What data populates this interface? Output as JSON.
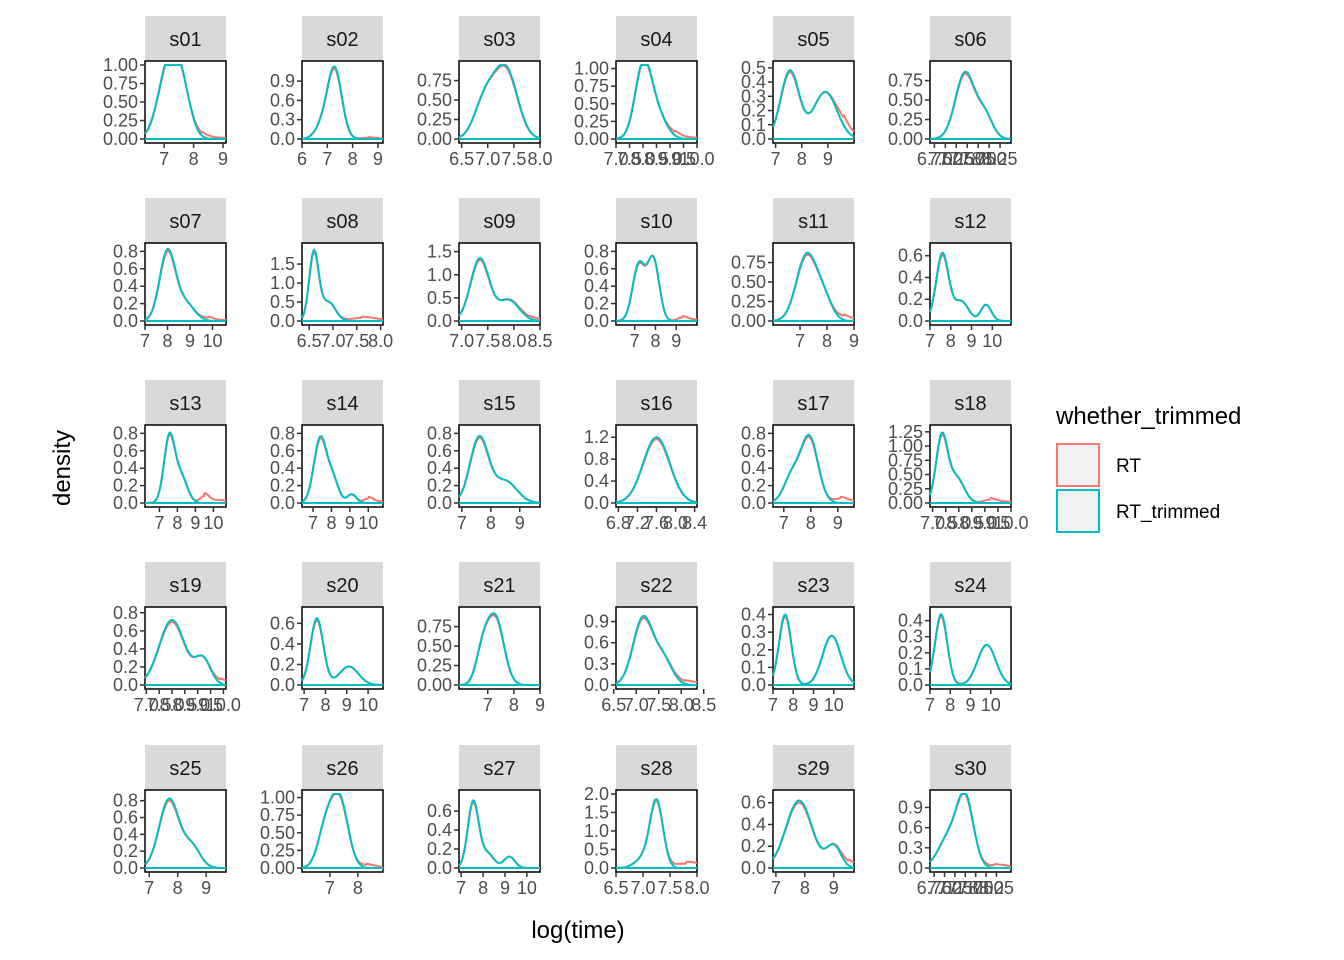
{
  "chart_data": {
    "type": "line",
    "subtype": "faceted density plot",
    "xlabel": "log(time)",
    "ylabel": "density",
    "legend": {
      "title": "whether_trimmed",
      "placement": "right",
      "entries": [
        {
          "name": "RT",
          "color": "#F8766D"
        },
        {
          "name": "RT_trimmed",
          "color": "#00BFC4"
        }
      ]
    },
    "panels": [
      {
        "id": "s01",
        "xlim": [
          6.35,
          9.1
        ],
        "ylim": [
          0,
          1.0
        ],
        "xticks": [
          "7",
          "8",
          "9"
        ],
        "yticks": [
          "0.00",
          "0.25",
          "0.50",
          "0.75",
          "1.00"
        ],
        "peaks": [
          {
            "x": 7.15,
            "h": 0.98,
            "w": 0.35
          },
          {
            "x": 7.6,
            "h": 0.55,
            "w": 0.3
          }
        ],
        "tail": {
          "x": 8.3,
          "h": 0.04
        }
      },
      {
        "id": "s02",
        "xlim": [
          6.0,
          9.2
        ],
        "ylim": [
          0,
          1.15
        ],
        "xticks": [
          "6",
          "7",
          "8",
          "9"
        ],
        "yticks": [
          "0.0",
          "0.3",
          "0.6",
          "0.9"
        ],
        "peaks": [
          {
            "x": 7.3,
            "h": 1.05,
            "w": 0.28
          },
          {
            "x": 6.85,
            "h": 0.22,
            "w": 0.3
          }
        ],
        "tail": {
          "x": 8.6,
          "h": 0.02
        }
      },
      {
        "id": "s03",
        "xlim": [
          6.45,
          8.0
        ],
        "ylim": [
          0,
          0.95
        ],
        "xticks": [
          "6.5",
          "7.0",
          "7.5",
          "8.0"
        ],
        "yticks": [
          "0.00",
          "0.25",
          "0.50",
          "0.75"
        ],
        "peaks": [
          {
            "x": 7.35,
            "h": 0.88,
            "w": 0.22
          },
          {
            "x": 6.95,
            "h": 0.5,
            "w": 0.2
          }
        ],
        "tail": null
      },
      {
        "id": "s04",
        "xlim": [
          7.0,
          10.0
        ],
        "ylim": [
          0,
          1.05
        ],
        "xticks": [
          "7.0",
          "7.5",
          "8.0",
          "8.5",
          "9.0",
          "9.5",
          "10.0"
        ],
        "yticks": [
          "0.00",
          "0.25",
          "0.50",
          "0.75",
          "1.00"
        ],
        "peaks": [
          {
            "x": 8.0,
            "h": 1.0,
            "w": 0.3
          },
          {
            "x": 8.5,
            "h": 0.35,
            "w": 0.35
          }
        ],
        "tail": {
          "x": 9.2,
          "h": 0.05
        }
      },
      {
        "id": "s05",
        "xlim": [
          6.9,
          10.0
        ],
        "ylim": [
          0,
          0.52
        ],
        "xticks": [
          "7",
          "8",
          "9"
        ],
        "yticks": [
          "0.0",
          "0.1",
          "0.2",
          "0.3",
          "0.4",
          "0.5"
        ],
        "peaks": [
          {
            "x": 7.55,
            "h": 0.48,
            "w": 0.35
          },
          {
            "x": 8.9,
            "h": 0.33,
            "w": 0.45
          }
        ],
        "tail": {
          "x": 9.6,
          "h": 0.05
        }
      },
      {
        "id": "s06",
        "xlim": [
          6.65,
          8.5
        ],
        "ylim": [
          0,
          0.95
        ],
        "xticks": [
          "6.75",
          "7.00",
          "7.25",
          "7.50",
          "7.75",
          "8.00",
          "8.25"
        ],
        "yticks": [
          "0.00",
          "0.25",
          "0.50",
          "0.75"
        ],
        "peaks": [
          {
            "x": 7.45,
            "h": 0.85,
            "w": 0.22
          },
          {
            "x": 7.9,
            "h": 0.3,
            "w": 0.18
          }
        ],
        "tail": null
      },
      {
        "id": "s07",
        "xlim": [
          7.0,
          10.6
        ],
        "ylim": [
          0,
          0.85
        ],
        "xticks": [
          "7",
          "8",
          "9",
          "10"
        ],
        "yticks": [
          "0.0",
          "0.2",
          "0.4",
          "0.6",
          "0.8"
        ],
        "peaks": [
          {
            "x": 8.0,
            "h": 0.8,
            "w": 0.35
          },
          {
            "x": 8.8,
            "h": 0.2,
            "w": 0.4
          }
        ],
        "tail": {
          "x": 9.8,
          "h": 0.03
        }
      },
      {
        "id": "s08",
        "xlim": [
          6.35,
          8.05
        ],
        "ylim": [
          0,
          1.95
        ],
        "xticks": [
          "6.5",
          "7.0",
          "7.5",
          "8.0"
        ],
        "yticks": [
          "0.0",
          "0.5",
          "1.0",
          "1.5"
        ],
        "peaks": [
          {
            "x": 6.6,
            "h": 1.8,
            "w": 0.1
          },
          {
            "x": 6.9,
            "h": 0.5,
            "w": 0.15
          }
        ],
        "tail": {
          "x": 7.6,
          "h": 0.08
        }
      },
      {
        "id": "s09",
        "xlim": [
          6.95,
          8.5
        ],
        "ylim": [
          0,
          1.6
        ],
        "xticks": [
          "7.0",
          "7.5",
          "8.0",
          "8.5"
        ],
        "yticks": [
          "0.0",
          "0.5",
          "1.0",
          "1.5"
        ],
        "peaks": [
          {
            "x": 7.35,
            "h": 1.35,
            "w": 0.18
          },
          {
            "x": 7.9,
            "h": 0.45,
            "w": 0.2
          }
        ],
        "tail": {
          "x": 8.3,
          "h": 0.04
        }
      },
      {
        "id": "s10",
        "xlim": [
          6.1,
          10.0
        ],
        "ylim": [
          0,
          0.85
        ],
        "xticks": [
          "7",
          "8",
          "9"
        ],
        "yticks": [
          "0.0",
          "0.2",
          "0.4",
          "0.6",
          "0.8"
        ],
        "peaks": [
          {
            "x": 7.2,
            "h": 0.65,
            "w": 0.3
          },
          {
            "x": 7.9,
            "h": 0.7,
            "w": 0.28
          }
        ],
        "tail": {
          "x": 9.3,
          "h": 0.04
        }
      },
      {
        "id": "s11",
        "xlim": [
          6.0,
          9.0
        ],
        "ylim": [
          0,
          0.95
        ],
        "xticks": [
          "7",
          "8",
          "9"
        ],
        "yticks": [
          "0.00",
          "0.25",
          "0.50",
          "0.75"
        ],
        "peaks": [
          {
            "x": 7.25,
            "h": 0.85,
            "w": 0.38
          },
          {
            "x": 7.9,
            "h": 0.25,
            "w": 0.3
          }
        ],
        "tail": {
          "x": 8.6,
          "h": 0.05
        }
      },
      {
        "id": "s12",
        "xlim": [
          7.0,
          10.9
        ],
        "ylim": [
          0,
          0.68
        ],
        "xticks": [
          "7",
          "8",
          "9",
          "10"
        ],
        "yticks": [
          "0.0",
          "0.2",
          "0.4",
          "0.6"
        ],
        "peaks": [
          {
            "x": 7.6,
            "h": 0.62,
            "w": 0.3
          },
          {
            "x": 8.5,
            "h": 0.18,
            "w": 0.35
          },
          {
            "x": 9.7,
            "h": 0.15,
            "w": 0.25
          }
        ],
        "tail": null
      },
      {
        "id": "s13",
        "xlim": [
          6.2,
          10.7
        ],
        "ylim": [
          0,
          0.85
        ],
        "xticks": [
          "7",
          "8",
          "9",
          "10"
        ],
        "yticks": [
          "0.0",
          "0.2",
          "0.4",
          "0.6",
          "0.8"
        ],
        "peaks": [
          {
            "x": 7.55,
            "h": 0.75,
            "w": 0.3
          },
          {
            "x": 8.2,
            "h": 0.3,
            "w": 0.35
          }
        ],
        "tail": {
          "x": 9.5,
          "h": 0.08
        }
      },
      {
        "id": "s14",
        "xlim": [
          6.4,
          10.8
        ],
        "ylim": [
          0,
          0.85
        ],
        "xticks": [
          "7",
          "8",
          "9",
          "10"
        ],
        "yticks": [
          "0.0",
          "0.2",
          "0.4",
          "0.6",
          "0.8"
        ],
        "peaks": [
          {
            "x": 7.4,
            "h": 0.75,
            "w": 0.35
          },
          {
            "x": 8.1,
            "h": 0.25,
            "w": 0.3
          },
          {
            "x": 9.1,
            "h": 0.1,
            "w": 0.25
          }
        ],
        "tail": {
          "x": 10.0,
          "h": 0.05
        }
      },
      {
        "id": "s15",
        "xlim": [
          6.9,
          9.7
        ],
        "ylim": [
          0,
          0.85
        ],
        "xticks": [
          "7",
          "8",
          "9"
        ],
        "yticks": [
          "0.0",
          "0.2",
          "0.4",
          "0.6",
          "0.8"
        ],
        "peaks": [
          {
            "x": 7.6,
            "h": 0.75,
            "w": 0.32
          },
          {
            "x": 8.5,
            "h": 0.25,
            "w": 0.4
          }
        ],
        "tail": null
      },
      {
        "id": "s16",
        "xlim": [
          6.75,
          8.45
        ],
        "ylim": [
          0,
          1.35
        ],
        "xticks": [
          "6.8",
          "7.2",
          "7.6",
          "8.0",
          "8.4"
        ],
        "yticks": [
          "0.0",
          "0.4",
          "0.8",
          "1.2"
        ],
        "peaks": [
          {
            "x": 7.6,
            "h": 1.2,
            "w": 0.28
          }
        ],
        "tail": null
      },
      {
        "id": "s17",
        "xlim": [
          6.6,
          9.6
        ],
        "ylim": [
          0,
          0.85
        ],
        "xticks": [
          "7",
          "8",
          "9"
        ],
        "yticks": [
          "0.0",
          "0.2",
          "0.4",
          "0.6",
          "0.8"
        ],
        "peaks": [
          {
            "x": 7.95,
            "h": 0.75,
            "w": 0.32
          },
          {
            "x": 7.3,
            "h": 0.3,
            "w": 0.3
          }
        ],
        "tail": {
          "x": 9.1,
          "h": 0.05
        }
      },
      {
        "id": "s18",
        "xlim": [
          6.9,
          10.0
        ],
        "ylim": [
          0,
          1.3
        ],
        "xticks": [
          "7.0",
          "7.5",
          "8.0",
          "8.5",
          "9.0",
          "9.5",
          "10.0"
        ],
        "yticks": [
          "0.00",
          "0.25",
          "0.50",
          "0.75",
          "1.00",
          "1.25"
        ],
        "peaks": [
          {
            "x": 7.35,
            "h": 1.15,
            "w": 0.22
          },
          {
            "x": 7.9,
            "h": 0.45,
            "w": 0.3
          }
        ],
        "tail": {
          "x": 9.2,
          "h": 0.06
        }
      },
      {
        "id": "s19",
        "xlim": [
          6.95,
          10.1
        ],
        "ylim": [
          0,
          0.82
        ],
        "xticks": [
          "7.0",
          "7.5",
          "8.0",
          "8.5",
          "9.0",
          "9.5",
          "10.0"
        ],
        "yticks": [
          "0.0",
          "0.2",
          "0.4",
          "0.6",
          "0.8"
        ],
        "peaks": [
          {
            "x": 8.0,
            "h": 0.72,
            "w": 0.5
          },
          {
            "x": 9.2,
            "h": 0.28,
            "w": 0.3
          }
        ],
        "tail": {
          "x": 9.9,
          "h": 0.04
        }
      },
      {
        "id": "s20",
        "xlim": [
          6.9,
          10.7
        ],
        "ylim": [
          0,
          0.72
        ],
        "xticks": [
          "7",
          "8",
          "9",
          "10"
        ],
        "yticks": [
          "0.0",
          "0.2",
          "0.4",
          "0.6"
        ],
        "peaks": [
          {
            "x": 7.6,
            "h": 0.65,
            "w": 0.3
          },
          {
            "x": 9.1,
            "h": 0.18,
            "w": 0.45
          }
        ],
        "tail": null
      },
      {
        "id": "s21",
        "xlim": [
          5.9,
          9.0
        ],
        "ylim": [
          0,
          0.95
        ],
        "xticks": [
          "7",
          "8",
          "9"
        ],
        "yticks": [
          "0.00",
          "0.25",
          "0.50",
          "0.75"
        ],
        "peaks": [
          {
            "x": 7.3,
            "h": 0.85,
            "w": 0.32
          },
          {
            "x": 6.8,
            "h": 0.4,
            "w": 0.25
          }
        ],
        "tail": null
      },
      {
        "id": "s22",
        "xlim": [
          6.55,
          8.35
        ],
        "ylim": [
          0,
          1.05
        ],
        "xticks": [
          "6.5",
          "7.0",
          "7.5",
          "8.0",
          "8.5"
        ],
        "yticks": [
          "0.0",
          "0.3",
          "0.6",
          "0.9"
        ],
        "peaks": [
          {
            "x": 7.15,
            "h": 0.95,
            "w": 0.22
          },
          {
            "x": 7.6,
            "h": 0.35,
            "w": 0.2
          }
        ],
        "tail": {
          "x": 8.1,
          "h": 0.04
        }
      },
      {
        "id": "s23",
        "xlim": [
          7.0,
          11.0
        ],
        "ylim": [
          0,
          0.42
        ],
        "xticks": [
          "7",
          "8",
          "9",
          "10"
        ],
        "yticks": [
          "0.0",
          "0.1",
          "0.2",
          "0.3",
          "0.4"
        ],
        "peaks": [
          {
            "x": 7.6,
            "h": 0.4,
            "w": 0.3
          },
          {
            "x": 9.9,
            "h": 0.28,
            "w": 0.45
          }
        ],
        "tail": null
      },
      {
        "id": "s24",
        "xlim": [
          7.0,
          11.0
        ],
        "ylim": [
          0,
          0.46
        ],
        "xticks": [
          "7",
          "8",
          "9",
          "10"
        ],
        "yticks": [
          "0.0",
          "0.1",
          "0.2",
          "0.3",
          "0.4"
        ],
        "peaks": [
          {
            "x": 7.55,
            "h": 0.44,
            "w": 0.3
          },
          {
            "x": 9.8,
            "h": 0.25,
            "w": 0.45
          }
        ],
        "tail": null
      },
      {
        "id": "s25",
        "xlim": [
          6.85,
          9.7
        ],
        "ylim": [
          0,
          0.88
        ],
        "xticks": [
          "7",
          "8",
          "9"
        ],
        "yticks": [
          "0.0",
          "0.2",
          "0.4",
          "0.6",
          "0.8"
        ],
        "peaks": [
          {
            "x": 7.7,
            "h": 0.82,
            "w": 0.35
          },
          {
            "x": 8.5,
            "h": 0.25,
            "w": 0.3
          }
        ],
        "tail": null
      },
      {
        "id": "s26",
        "xlim": [
          6.0,
          8.9
        ],
        "ylim": [
          0,
          1.05
        ],
        "xticks": [
          "7",
          "8"
        ],
        "yticks": [
          "0.00",
          "0.25",
          "0.50",
          "0.75",
          "1.00"
        ],
        "peaks": [
          {
            "x": 7.35,
            "h": 0.95,
            "w": 0.3
          },
          {
            "x": 6.85,
            "h": 0.55,
            "w": 0.28
          }
        ],
        "tail": {
          "x": 8.3,
          "h": 0.04
        }
      },
      {
        "id": "s27",
        "xlim": [
          6.9,
          10.6
        ],
        "ylim": [
          0,
          0.78
        ],
        "xticks": [
          "7",
          "8",
          "9",
          "10"
        ],
        "yticks": [
          "0.0",
          "0.2",
          "0.4",
          "0.6"
        ],
        "peaks": [
          {
            "x": 7.55,
            "h": 0.7,
            "w": 0.25
          },
          {
            "x": 8.2,
            "h": 0.15,
            "w": 0.3
          },
          {
            "x": 9.2,
            "h": 0.12,
            "w": 0.25
          }
        ],
        "tail": null
      },
      {
        "id": "s28",
        "xlim": [
          6.5,
          8.0
        ],
        "ylim": [
          0,
          2.0
        ],
        "xticks": [
          "6.5",
          "7.0",
          "7.5",
          "8.0"
        ],
        "yticks": [
          "0.0",
          "0.5",
          "1.0",
          "1.5",
          "2.0"
        ],
        "peaks": [
          {
            "x": 7.25,
            "h": 1.8,
            "w": 0.12
          },
          {
            "x": 7.0,
            "h": 0.25,
            "w": 0.15
          }
        ],
        "tail": {
          "x": 7.8,
          "h": 0.12
        }
      },
      {
        "id": "s29",
        "xlim": [
          6.9,
          9.7
        ],
        "ylim": [
          0,
          0.68
        ],
        "xticks": [
          "7",
          "8",
          "9"
        ],
        "yticks": [
          "0.0",
          "0.2",
          "0.4",
          "0.6"
        ],
        "peaks": [
          {
            "x": 7.8,
            "h": 0.62,
            "w": 0.45
          },
          {
            "x": 9.0,
            "h": 0.2,
            "w": 0.25
          }
        ],
        "tail": {
          "x": 9.5,
          "h": 0.04
        }
      },
      {
        "id": "s30",
        "xlim": [
          6.65,
          8.6
        ],
        "ylim": [
          0,
          1.1
        ],
        "xticks": [
          "6.75",
          "7.00",
          "7.25",
          "7.50",
          "7.75",
          "8.00",
          "8.25"
        ],
        "yticks": [
          "0.0",
          "0.3",
          "0.6",
          "0.9"
        ],
        "peaks": [
          {
            "x": 7.5,
            "h": 1.0,
            "w": 0.2
          },
          {
            "x": 7.1,
            "h": 0.45,
            "w": 0.25
          }
        ],
        "tail": {
          "x": 8.2,
          "h": 0.04
        }
      }
    ]
  }
}
